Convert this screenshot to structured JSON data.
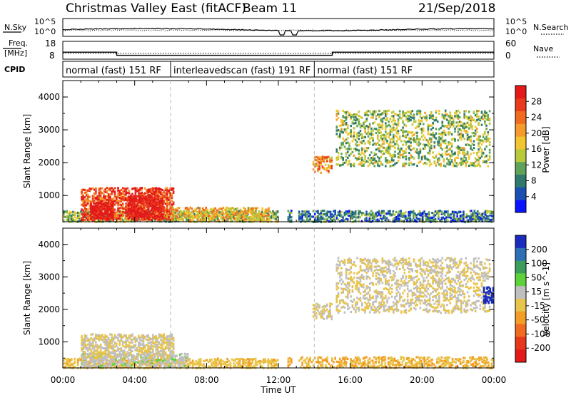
{
  "header": {
    "title": "Christmas Valley East (fitACF)",
    "beam": "Beam 11",
    "date": "21/Sep/2018"
  },
  "noise_panel": {
    "left_label": "N.Sky",
    "right_label": "N.Search",
    "tick_top": "10^5",
    "tick_bottom": "10^0"
  },
  "freq_panel": {
    "left_label_1": "Freq.",
    "left_label_2": "[MHz]",
    "tick_top": "18",
    "tick_bottom": "8",
    "right_label": "Nave",
    "right_tick_top": "60",
    "right_tick_bottom": "0",
    "freq_mhz_steps": [
      [
        0,
        12
      ],
      [
        3,
        10
      ],
      [
        15,
        12
      ],
      [
        24,
        12
      ]
    ],
    "nave_steps": [
      [
        0,
        20
      ],
      [
        24,
        20
      ]
    ]
  },
  "cpid": {
    "label": "CPID",
    "segments": [
      {
        "start": 0,
        "end": 6,
        "text": "normal (fast) 151 RF"
      },
      {
        "start": 6,
        "end": 14,
        "text": "interleavedscan (fast) 191 RF"
      },
      {
        "start": 14,
        "end": 24,
        "text": "normal (fast) 151 RF"
      }
    ]
  },
  "axes": {
    "xlabel": "Time UT",
    "xticks": [
      "00:00",
      "04:00",
      "08:00",
      "12:00",
      "16:00",
      "20:00",
      "00:00"
    ],
    "ylabel": "Slant Range [km]",
    "yticks": [
      "1000",
      "2000",
      "3000",
      "4000"
    ]
  },
  "power_colorbar": {
    "label": "Power [dB]",
    "ticks": [
      "4",
      "8",
      "12",
      "16",
      "20",
      "24",
      "28"
    ],
    "colors": [
      "#0a14ff",
      "#1c4fb4",
      "#2f7a6c",
      "#5fa35a",
      "#b8c93a",
      "#f2c531",
      "#f49b2c",
      "#f06a1f",
      "#e83a1c",
      "#e31a1a"
    ]
  },
  "velocity_colorbar": {
    "label": "Velocity [m s^-1]",
    "ticks": [
      "200",
      "100",
      "50",
      "15",
      "-15",
      "-50",
      "-100",
      "-200"
    ],
    "colors": [
      "#1a2bbd",
      "#2f6fb5",
      "#3b9c5c",
      "#5ed23b",
      "#bfbfbf",
      "#e8c44a",
      "#f29d26",
      "#f06a1f",
      "#e8381c",
      "#e31a1a"
    ]
  },
  "chart_data": [
    {
      "type": "heatmap",
      "title": "Power",
      "xlabel": "Time UT",
      "ylabel": "Slant Range [km]",
      "xlim": [
        0,
        24
      ],
      "ylim": [
        200,
        4500
      ],
      "colorbar_label": "Power [dB]",
      "scatter_regions": [
        {
          "t0": 0.0,
          "t1": 12.0,
          "r0": 200,
          "r1": 550,
          "power_db": 14,
          "density": 0.55
        },
        {
          "t0": 1.0,
          "t1": 6.2,
          "r0": 250,
          "r1": 1250,
          "power_db": 24,
          "density": 0.6
        },
        {
          "t0": 1.5,
          "t1": 2.8,
          "r0": 300,
          "r1": 800,
          "power_db": 29,
          "density": 0.7
        },
        {
          "t0": 3.6,
          "t1": 5.6,
          "r0": 300,
          "r1": 1000,
          "power_db": 28,
          "density": 0.65
        },
        {
          "t0": 6.0,
          "t1": 11.5,
          "r0": 250,
          "r1": 650,
          "power_db": 18,
          "density": 0.45
        },
        {
          "t0": 12.5,
          "t1": 24.0,
          "r0": 200,
          "r1": 550,
          "power_db": 10,
          "density": 0.55
        },
        {
          "t0": 13.9,
          "t1": 15.0,
          "r0": 1700,
          "r1": 2200,
          "power_db": 20,
          "density": 0.55
        },
        {
          "t0": 15.2,
          "t1": 23.8,
          "r0": 1900,
          "r1": 3600,
          "power_db": 14,
          "density": 0.32
        }
      ]
    },
    {
      "type": "heatmap",
      "title": "Velocity",
      "xlabel": "Time UT",
      "ylabel": "Slant Range [km]",
      "xlim": [
        0,
        24
      ],
      "ylim": [
        200,
        4500
      ],
      "colorbar_label": "Velocity [m s^-1]",
      "scatter_regions": [
        {
          "t0": 0.0,
          "t1": 12.0,
          "r0": 200,
          "r1": 500,
          "velocity": -30,
          "density": 0.5
        },
        {
          "t0": 1.0,
          "t1": 7.0,
          "r0": 250,
          "r1": 650,
          "velocity": 30,
          "density": 0.5
        },
        {
          "t0": 1.0,
          "t1": 6.2,
          "r0": 500,
          "r1": 1250,
          "velocity": 0,
          "density": 0.55
        },
        {
          "t0": 12.5,
          "t1": 24.0,
          "r0": 200,
          "r1": 550,
          "velocity": -40,
          "density": 0.45
        },
        {
          "t0": 13.9,
          "t1": 15.0,
          "r0": 1700,
          "r1": 2200,
          "velocity": 0,
          "density": 0.5
        },
        {
          "t0": 15.2,
          "t1": 23.8,
          "r0": 1900,
          "r1": 3600,
          "velocity": 0,
          "density": 0.32
        },
        {
          "t0": 23.4,
          "t1": 24.0,
          "r0": 2200,
          "r1": 2700,
          "velocity": 180,
          "density": 0.6
        }
      ]
    }
  ]
}
